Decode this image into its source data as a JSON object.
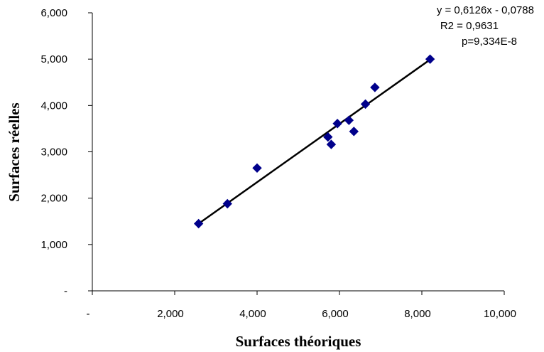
{
  "chart_data": {
    "type": "scatter",
    "title": "",
    "xlabel": "Surfaces théoriques",
    "ylabel": "Surfaces réelles",
    "xlim": [
      0,
      10
    ],
    "ylim": [
      0,
      6
    ],
    "xticks": [
      {
        "value": 0,
        "label": "-"
      },
      {
        "value": 2,
        "label": "2,000"
      },
      {
        "value": 4,
        "label": "4,000"
      },
      {
        "value": 6,
        "label": "6,000"
      },
      {
        "value": 8,
        "label": "8,000"
      },
      {
        "value": 10,
        "label": "10,000"
      }
    ],
    "yticks": [
      {
        "value": 0,
        "label": "-"
      },
      {
        "value": 1,
        "label": "1,000"
      },
      {
        "value": 2,
        "label": "2,000"
      },
      {
        "value": 3,
        "label": "3,000"
      },
      {
        "value": 4,
        "label": "4,000"
      },
      {
        "value": 5,
        "label": "5,000"
      },
      {
        "value": 6,
        "label": "6,000"
      }
    ],
    "grid": false,
    "series": [
      {
        "marker": "diamond",
        "color": "#00008B",
        "points": [
          {
            "x": 2.58,
            "y": 1.45
          },
          {
            "x": 3.28,
            "y": 1.88
          },
          {
            "x": 4.0,
            "y": 2.65
          },
          {
            "x": 5.72,
            "y": 3.32
          },
          {
            "x": 5.8,
            "y": 3.16
          },
          {
            "x": 5.95,
            "y": 3.61
          },
          {
            "x": 6.23,
            "y": 3.68
          },
          {
            "x": 6.35,
            "y": 3.44
          },
          {
            "x": 6.63,
            "y": 4.03
          },
          {
            "x": 6.86,
            "y": 4.39
          },
          {
            "x": 8.2,
            "y": 5.0
          }
        ]
      }
    ],
    "trendline": {
      "color": "#000000",
      "from": {
        "x": 2.58,
        "y": 1.45
      },
      "to": {
        "x": 8.2,
        "y": 4.99
      }
    },
    "annotations": [
      "y = 0,6126x - 0,0788",
      "R2 = 0,9631",
      "p=9,334E-8"
    ]
  }
}
